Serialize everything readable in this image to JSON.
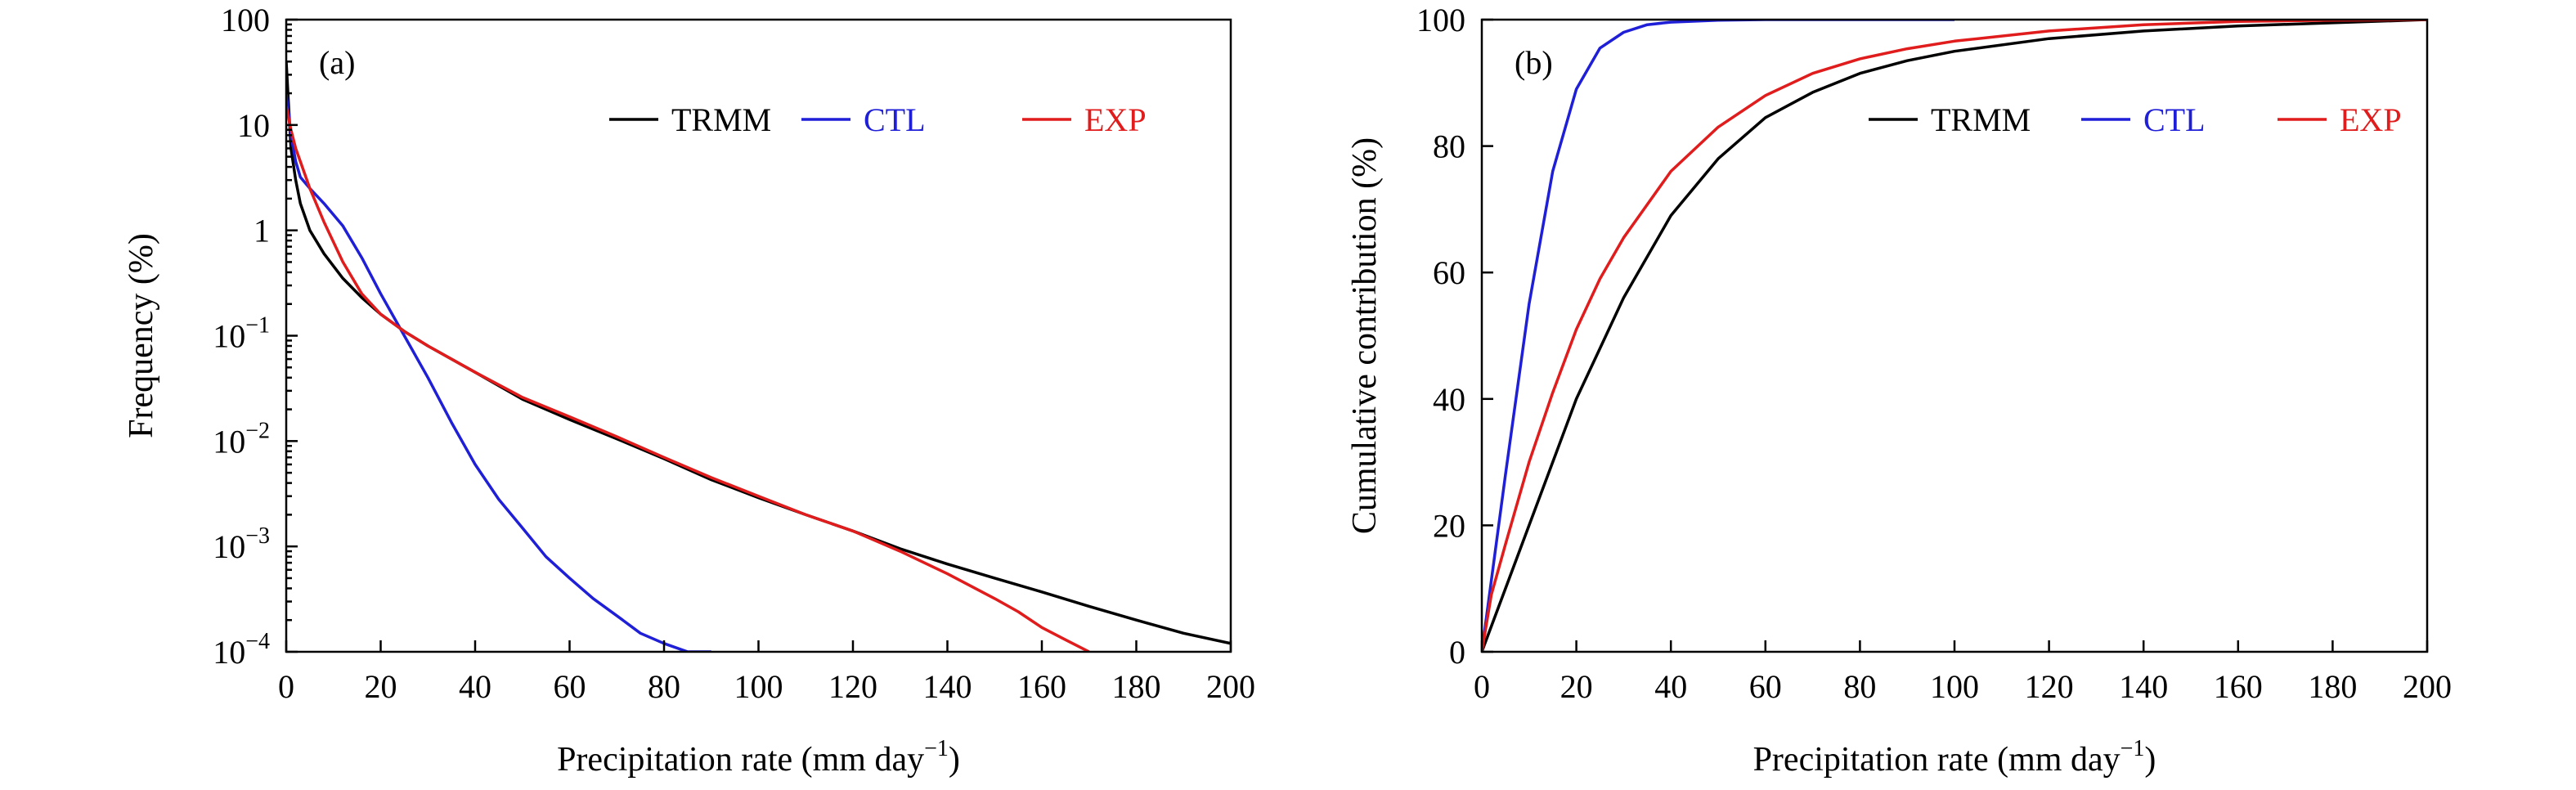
{
  "chart_data": [
    {
      "id": "a",
      "type": "line",
      "panel_label": "(a)",
      "xlabel": "Precipitation rate (mm day",
      "xlabel_sup": "−1",
      "xlabel_end": ")",
      "ylabel": "Frequency (%)",
      "xlim": [
        0,
        200
      ],
      "ylim": [
        0.0001,
        100
      ],
      "yscale": "log",
      "grid": false,
      "legend": "top-right",
      "xticks": [
        0,
        20,
        40,
        60,
        80,
        100,
        120,
        140,
        160,
        180,
        200
      ],
      "yticks": [
        {
          "value": 100,
          "base": "100",
          "exp": ""
        },
        {
          "value": 10,
          "base": "10",
          "exp": ""
        },
        {
          "value": 1,
          "base": "1",
          "exp": ""
        },
        {
          "value": 0.1,
          "base": "10",
          "exp": "−1"
        },
        {
          "value": 0.01,
          "base": "10",
          "exp": "−2"
        },
        {
          "value": 0.001,
          "base": "10",
          "exp": "−3"
        },
        {
          "value": 0.0001,
          "base": "10",
          "exp": "−4"
        }
      ],
      "series": [
        {
          "name": "TRMM",
          "color": "#000000",
          "x": [
            0,
            1,
            2,
            3,
            5,
            8,
            12,
            16,
            20,
            25,
            30,
            40,
            50,
            60,
            70,
            80,
            90,
            100,
            110,
            120,
            130,
            140,
            150,
            160,
            170,
            180,
            190,
            200
          ],
          "y": [
            40,
            6,
            3,
            1.8,
            1.0,
            0.6,
            0.35,
            0.23,
            0.16,
            0.11,
            0.08,
            0.045,
            0.025,
            0.016,
            0.0105,
            0.0068,
            0.0043,
            0.0029,
            0.002,
            0.0014,
            0.00095,
            0.00068,
            0.0005,
            0.00037,
            0.00027,
            0.0002,
            0.00015,
            0.00012
          ]
        },
        {
          "name": "CTL",
          "color": "#1f1fd8",
          "x": [
            0,
            1,
            2,
            3,
            5,
            8,
            12,
            16,
            20,
            25,
            30,
            35,
            40,
            45,
            50,
            55,
            60,
            65,
            70,
            75,
            80,
            85,
            90
          ],
          "y": [
            20,
            8,
            4.5,
            3.2,
            2.5,
            1.8,
            1.1,
            0.55,
            0.25,
            0.1,
            0.04,
            0.015,
            0.006,
            0.0028,
            0.0015,
            0.0008,
            0.0005,
            0.00032,
            0.00022,
            0.00015,
            0.00012,
            0.0001,
            0.0001
          ]
        },
        {
          "name": "EXP",
          "color": "#e01c1c",
          "x": [
            0,
            1,
            2,
            3,
            5,
            8,
            12,
            16,
            20,
            25,
            30,
            40,
            50,
            60,
            70,
            80,
            90,
            100,
            110,
            120,
            130,
            140,
            150,
            155,
            160,
            165,
            170
          ],
          "y": [
            15,
            9,
            6,
            4.5,
            2.5,
            1.2,
            0.5,
            0.25,
            0.16,
            0.11,
            0.08,
            0.045,
            0.026,
            0.017,
            0.011,
            0.007,
            0.0045,
            0.003,
            0.002,
            0.0014,
            0.0009,
            0.00055,
            0.00032,
            0.00024,
            0.00017,
            0.00013,
            0.0001
          ]
        }
      ]
    },
    {
      "id": "b",
      "type": "line",
      "panel_label": "(b)",
      "xlabel": "Precipitation rate (mm day",
      "xlabel_sup": "−1",
      "xlabel_end": ")",
      "ylabel": "Cumulative contribution (%)",
      "xlim": [
        0,
        200
      ],
      "ylim": [
        0,
        100
      ],
      "yscale": "linear",
      "grid": false,
      "legend": "top-right",
      "xticks": [
        0,
        20,
        40,
        60,
        80,
        100,
        120,
        140,
        160,
        180,
        200
      ],
      "yticks": [
        {
          "value": 0,
          "base": "0",
          "exp": ""
        },
        {
          "value": 20,
          "base": "20",
          "exp": ""
        },
        {
          "value": 40,
          "base": "40",
          "exp": ""
        },
        {
          "value": 60,
          "base": "60",
          "exp": ""
        },
        {
          "value": 80,
          "base": "80",
          "exp": ""
        },
        {
          "value": 100,
          "base": "100",
          "exp": ""
        }
      ],
      "series": [
        {
          "name": "TRMM",
          "color": "#000000",
          "x": [
            0,
            5,
            10,
            15,
            20,
            25,
            30,
            40,
            50,
            60,
            70,
            80,
            90,
            100,
            120,
            140,
            160,
            180,
            200
          ],
          "y": [
            0,
            10,
            20,
            30,
            40,
            48,
            56,
            69,
            78,
            84.5,
            88.5,
            91.5,
            93.5,
            95,
            97,
            98.2,
            99,
            99.5,
            100
          ]
        },
        {
          "name": "CTL",
          "color": "#1f1fd8",
          "x": [
            0,
            5,
            10,
            15,
            20,
            25,
            30,
            35,
            40,
            50,
            60,
            80,
            100
          ],
          "y": [
            0,
            28,
            55,
            76,
            89,
            95.5,
            98,
            99.2,
            99.6,
            99.9,
            100,
            100,
            100
          ]
        },
        {
          "name": "EXP",
          "color": "#e01c1c",
          "x": [
            0,
            2,
            5,
            10,
            15,
            20,
            25,
            30,
            40,
            50,
            60,
            70,
            80,
            90,
            100,
            120,
            140,
            160,
            180,
            200
          ],
          "y": [
            0,
            9,
            17,
            30,
            41,
            51,
            59,
            65.5,
            76,
            83,
            88,
            91.5,
            93.8,
            95.4,
            96.6,
            98.2,
            99.2,
            99.7,
            99.9,
            100
          ]
        }
      ]
    }
  ]
}
